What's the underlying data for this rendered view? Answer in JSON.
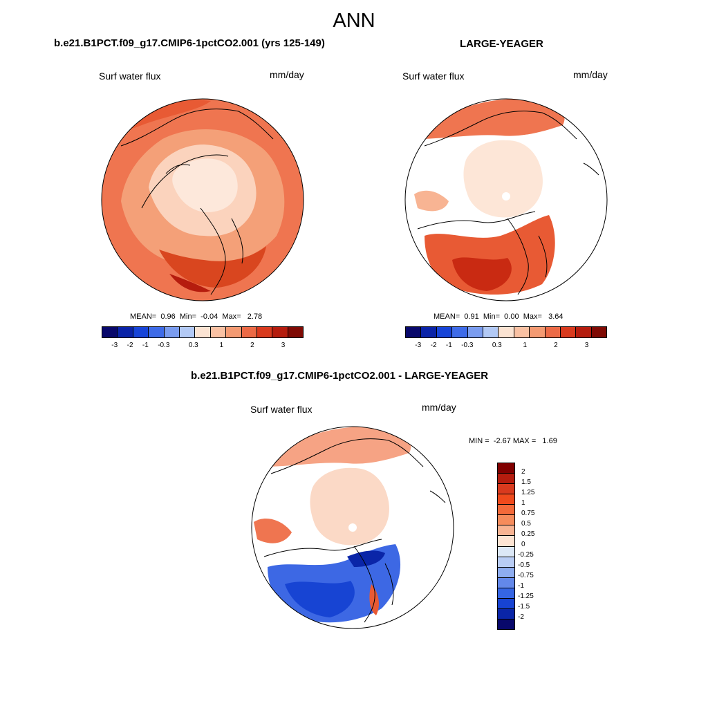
{
  "title": "ANN",
  "panels": [
    {
      "title": "b.e21.B1PCT.f09_g17.CMIP6-1pctCO2.001 (yrs 125-149)",
      "variable": "Surf water flux",
      "units": "mm/day",
      "mean_label": "MEAN=",
      "mean": "0.96",
      "min_label": "Min=",
      "min": "-0.04",
      "max_label": "Max=",
      "max": "2.78"
    },
    {
      "title": "LARGE-YEAGER",
      "variable": "Surf water flux",
      "units": "mm/day",
      "mean_label": "MEAN=",
      "mean": "0.91",
      "min_label": "Min=",
      "min": "0.00",
      "max_label": "Max=",
      "max": "3.64"
    }
  ],
  "diff": {
    "title": "b.e21.B1PCT.f09_g17.CMIP6-1pctCO2.001 - LARGE-YEAGER",
    "variable": "Surf water flux",
    "units": "mm/day",
    "min_label": "MIN =",
    "min": "-2.67",
    "max_label": "MAX =",
    "max": "1.69"
  },
  "colorbar_h": {
    "ticks": [
      "-3",
      "-2",
      "-1",
      "-0.3",
      "0.3",
      "1",
      "2",
      "3"
    ],
    "colors": [
      "#08086b",
      "#0a23a8",
      "#1744d8",
      "#3e6be8",
      "#7a9cef",
      "#b2c9f5",
      "#fbe3d2",
      "#f9c1a3",
      "#f49a72",
      "#ec6a46",
      "#d93a1e",
      "#b51c0e",
      "#7f0a04"
    ]
  },
  "colorbar_v": {
    "ticks": [
      "2",
      "1.5",
      "1.25",
      "1",
      "0.75",
      "0.5",
      "0.25",
      "0",
      "-0.25",
      "-0.5",
      "-0.75",
      "-1",
      "-1.25",
      "-1.5",
      "-2"
    ],
    "colors": [
      "#800000",
      "#b51c0e",
      "#d93a1e",
      "#f04a1c",
      "#f46a3a",
      "#f68c5c",
      "#f8b493",
      "#fde4d3",
      "#dce8f7",
      "#b9cdf5",
      "#8eadf0",
      "#6388ea",
      "#3565e4",
      "#1743d3",
      "#0a25a8",
      "#08086b"
    ]
  }
}
